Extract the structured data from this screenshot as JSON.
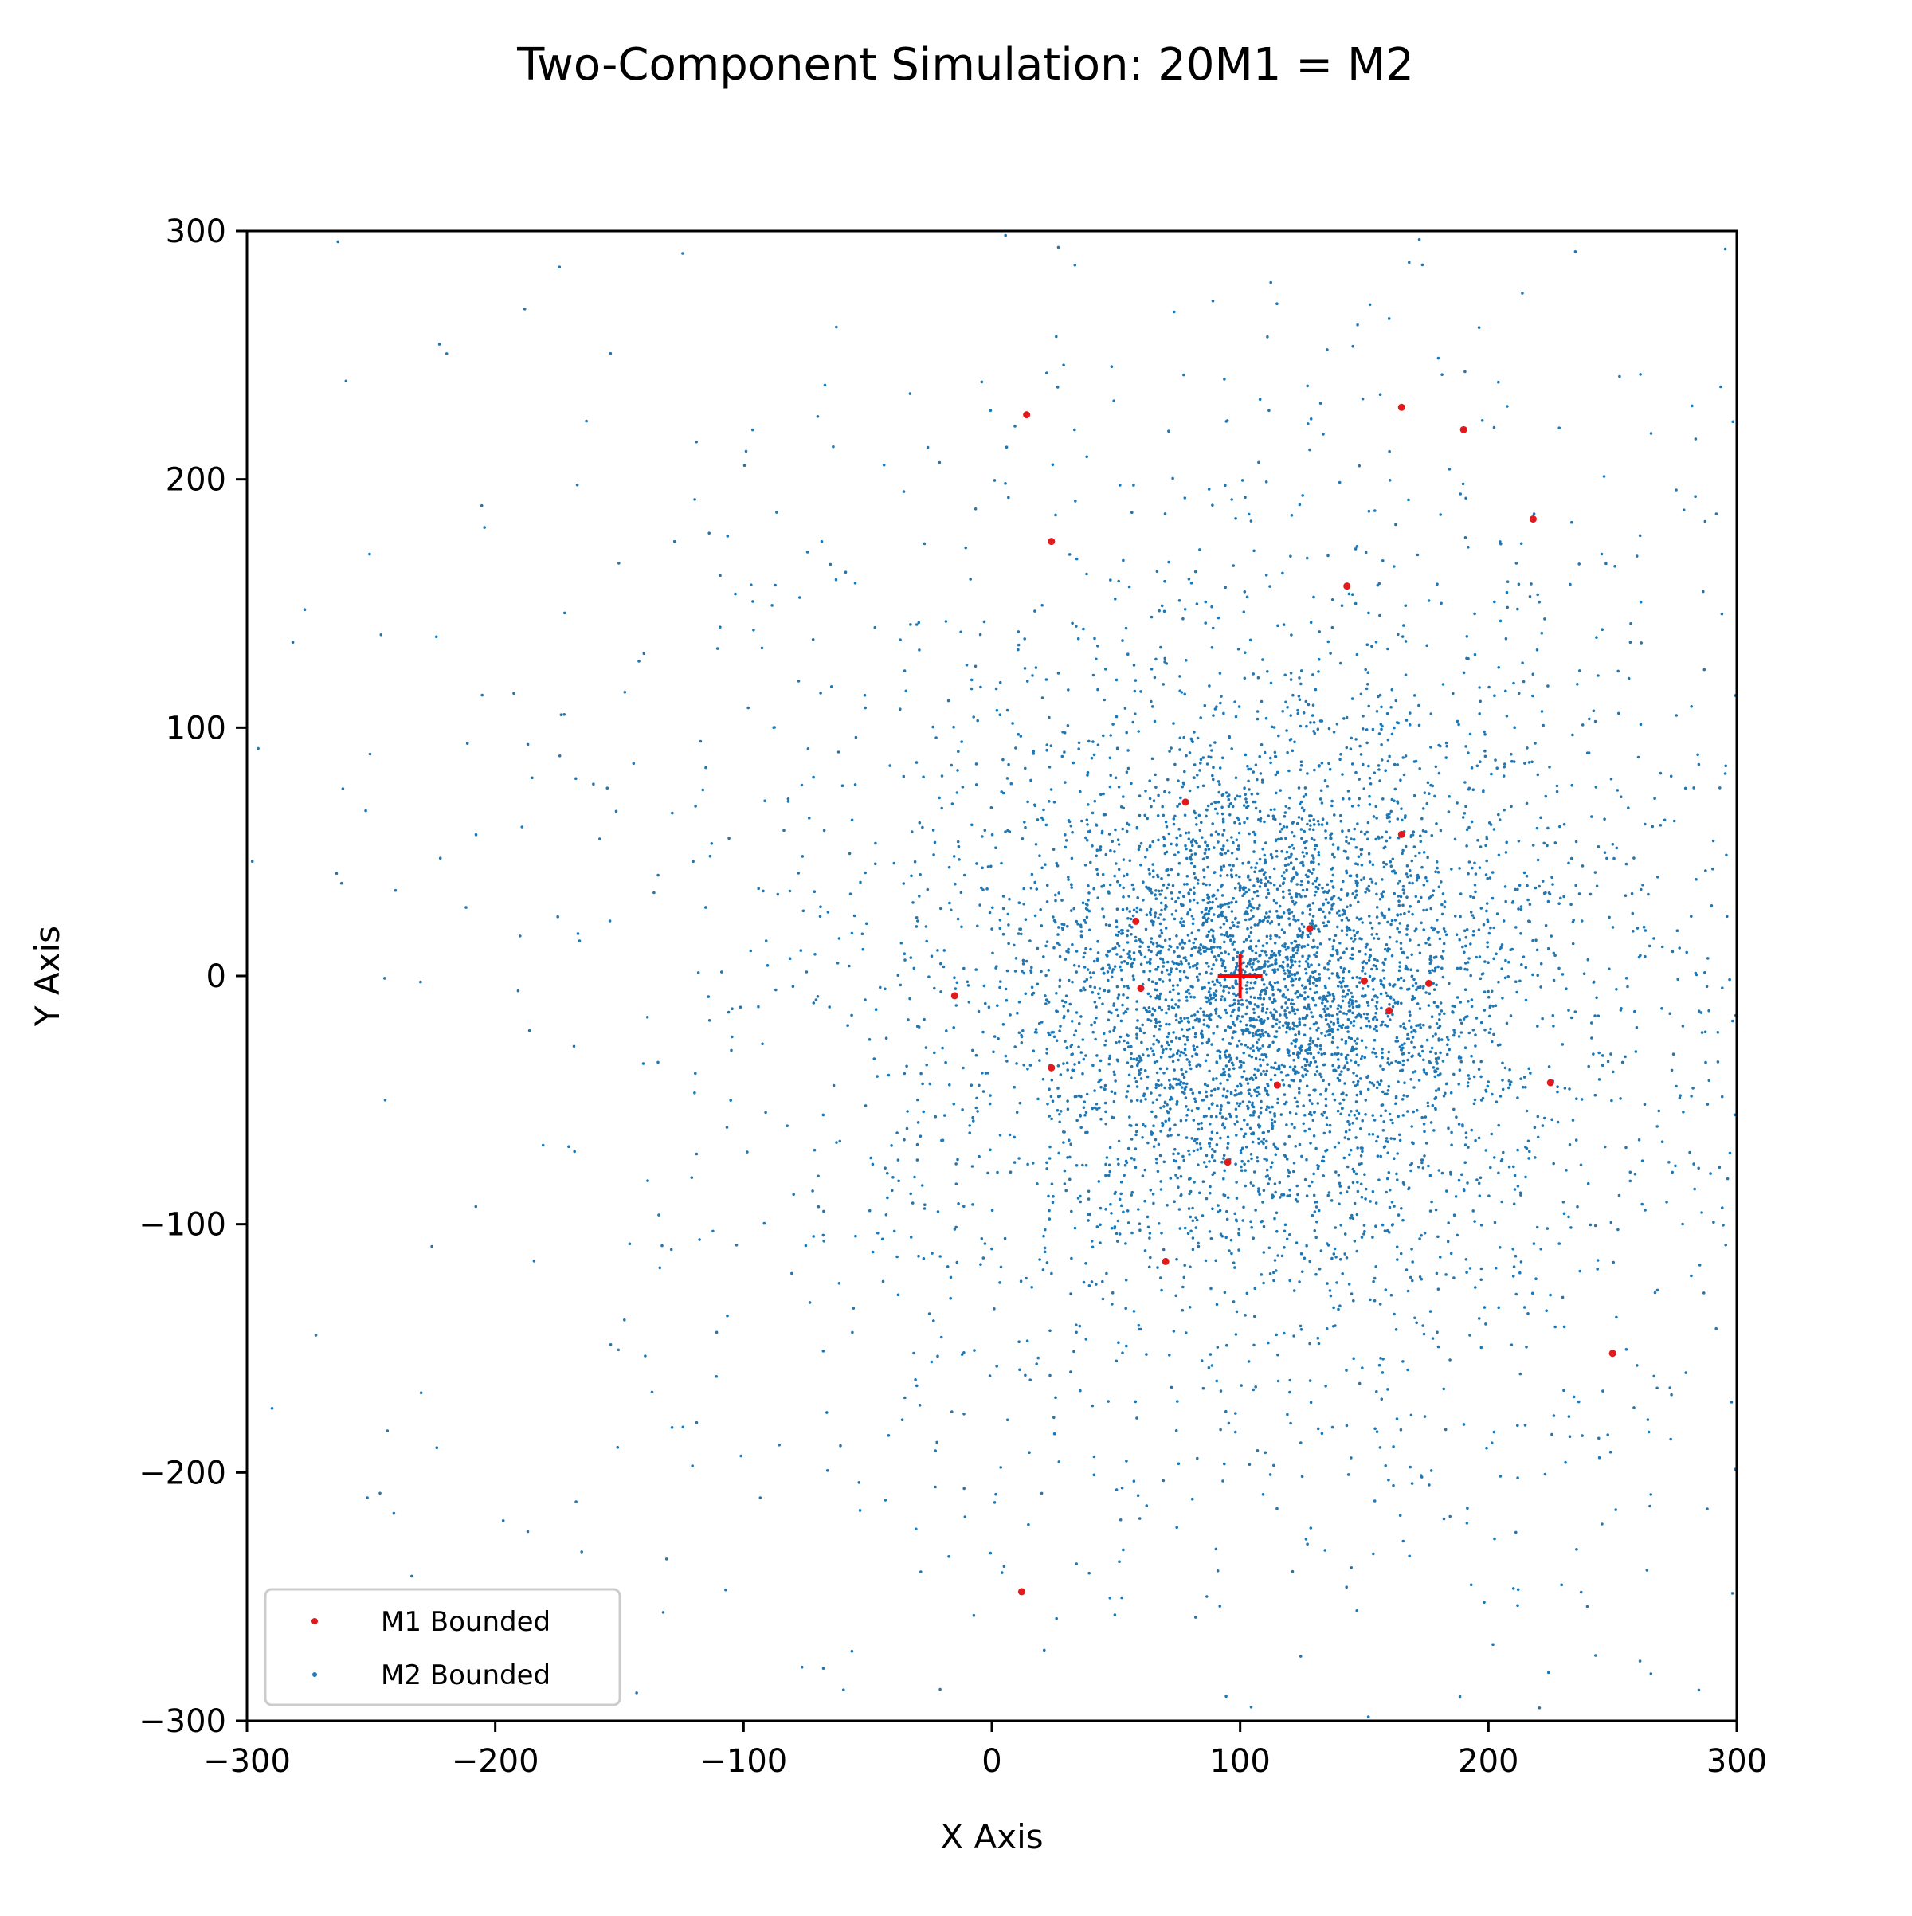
{
  "colors": {
    "m1": "#e31a1c",
    "m2": "#1f77b4",
    "marker": "#ff0000",
    "axis": "#000000",
    "legend_border": "#cccccc"
  },
  "chart_data": {
    "type": "scatter",
    "title": "Two-Component Simulation: 20M1 = M2",
    "xlabel": "X Axis",
    "ylabel": "Y Axis",
    "xlim": [
      -300,
      300
    ],
    "ylim": [
      -300,
      300
    ],
    "xticks": [
      -300,
      -200,
      -100,
      0,
      100,
      200,
      300
    ],
    "yticks": [
      -300,
      -200,
      -100,
      0,
      100,
      200,
      300
    ],
    "xtick_labels": [
      "−300",
      "−200",
      "−100",
      "0",
      "100",
      "200",
      "300"
    ],
    "ytick_labels": [
      "−300",
      "−200",
      "−100",
      "0",
      "100",
      "200",
      "300"
    ],
    "grid": false,
    "legend_position": "lower-left",
    "center_marker": {
      "x": 100,
      "y": 0,
      "symbol": "+"
    },
    "series": [
      {
        "name": "M1 Bounded",
        "color": "#e31a1c",
        "points": [
          [
            14,
            226
          ],
          [
            165,
            229
          ],
          [
            190,
            220
          ],
          [
            218,
            184
          ],
          [
            24,
            175
          ],
          [
            143,
            157
          ],
          [
            78,
            70
          ],
          [
            165,
            57
          ],
          [
            -15,
            -8
          ],
          [
            176,
            -3
          ],
          [
            24,
            -37
          ],
          [
            115,
            -44
          ],
          [
            225,
            -43
          ],
          [
            70,
            -115
          ],
          [
            95,
            -75
          ],
          [
            250,
            -152
          ],
          [
            12,
            -248
          ],
          [
            58,
            22
          ],
          [
            128,
            19
          ],
          [
            150,
            -2
          ],
          [
            160,
            -14
          ],
          [
            60,
            -5
          ]
        ]
      },
      {
        "name": "M2 Bounded",
        "color": "#1f77b4",
        "distribution": {
          "center": [
            110,
            -5
          ],
          "count": 26000,
          "sigma_scale": 95,
          "note_x_range": [
            -300,
            300
          ],
          "note_y_range": [
            -300,
            300
          ]
        }
      }
    ]
  }
}
